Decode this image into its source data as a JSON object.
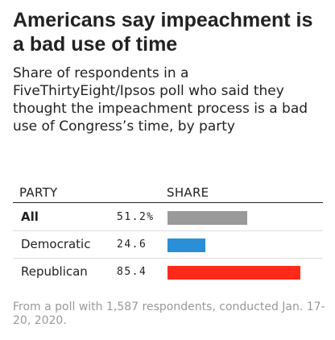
{
  "title": "Americans say impeachment is a bad use of time",
  "subtitle": "Share of respondents in a FiveThirtyEight/Ipsos poll who said they thought the impeachment process is a bad use of Congress’s time, by party",
  "columns": {
    "party": "PARTY",
    "share": "SHARE"
  },
  "footnote": "From a poll with 1,587 respondents, conducted Jan. 17-20, 2020.",
  "chart_data": {
    "type": "bar",
    "orientation": "horizontal",
    "categories": [
      "All",
      "Democratic",
      "Republican"
    ],
    "values": [
      51.2,
      24.6,
      85.4
    ],
    "value_labels": [
      "51.2%",
      "24.6",
      "85.4"
    ],
    "colors": [
      "#9a9a9a",
      "#2a8fd6",
      "#ff2a1a"
    ],
    "xlim": [
      0,
      100
    ],
    "grid": false
  }
}
